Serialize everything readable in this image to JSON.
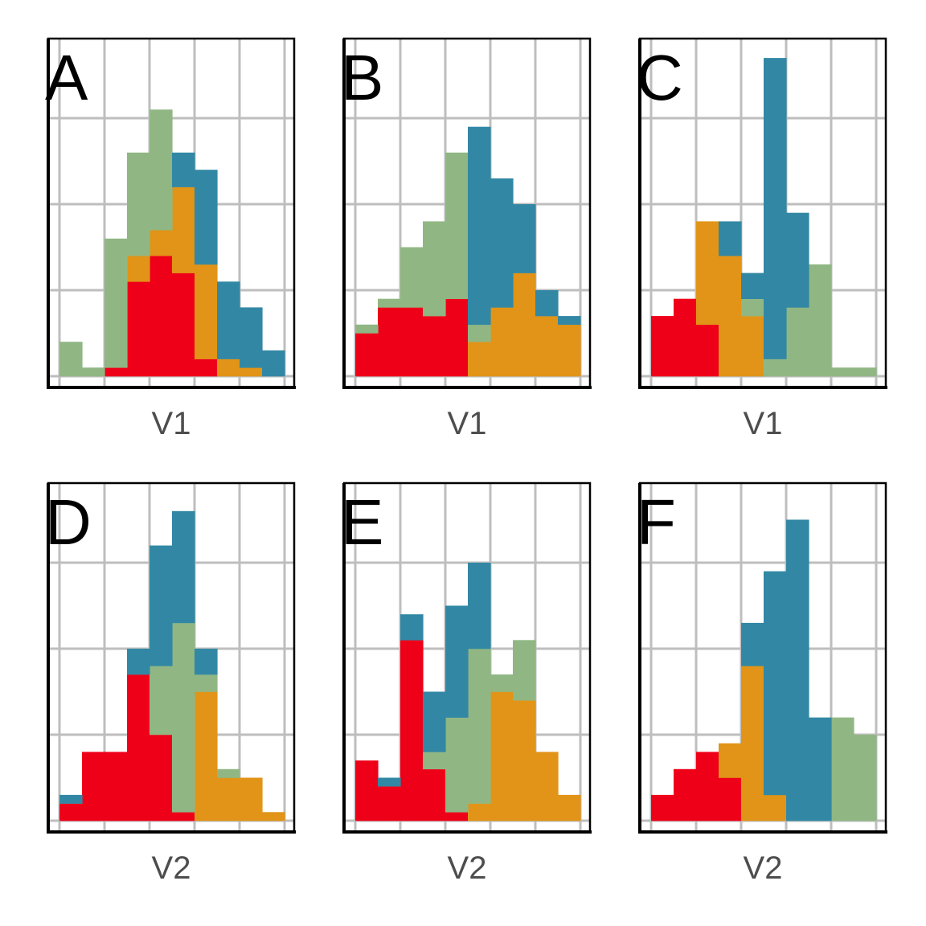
{
  "colors": {
    "red": "#ef0019",
    "orange": "#e19417",
    "green": "#90b783",
    "blue": "#3288a4",
    "grid": "#bebebe"
  },
  "chart_data": [
    {
      "type": "bar",
      "stacked": true,
      "panel": "A",
      "xlabel": "V1",
      "bins": 10,
      "ylim": [
        0,
        20
      ],
      "grid": true,
      "series": [
        {
          "color": "red",
          "values": [
            0,
            0,
            0.5,
            5.5,
            7,
            6,
            1,
            0,
            0,
            0
          ]
        },
        {
          "color": "orange",
          "values": [
            0,
            0,
            0,
            1.5,
            1.5,
            5,
            5.5,
            1,
            0.5,
            0
          ]
        },
        {
          "color": "green",
          "values": [
            2,
            0.5,
            7.5,
            6,
            7,
            0,
            0,
            0,
            0,
            0
          ]
        },
        {
          "color": "blue",
          "values": [
            0,
            0,
            0,
            0,
            0,
            2,
            5.5,
            4.5,
            3.5,
            1.5
          ]
        }
      ]
    },
    {
      "type": "bar",
      "stacked": true,
      "panel": "B",
      "xlabel": "V1",
      "bins": 10,
      "ylim": [
        0,
        20
      ],
      "grid": true,
      "series": [
        {
          "color": "red",
          "values": [
            2.5,
            4,
            4,
            3.5,
            4.5,
            0,
            0,
            0,
            0,
            0
          ]
        },
        {
          "color": "orange",
          "values": [
            0,
            0,
            0,
            0,
            0,
            2,
            4,
            6,
            3.5,
            3
          ]
        },
        {
          "color": "green",
          "values": [
            0.5,
            0.5,
            3.5,
            5.5,
            8.5,
            1,
            0,
            0,
            0,
            0
          ]
        },
        {
          "color": "blue",
          "values": [
            0,
            0,
            0,
            0,
            0,
            11.5,
            7.5,
            4,
            1.5,
            0.5
          ]
        }
      ]
    },
    {
      "type": "bar",
      "stacked": true,
      "panel": "C",
      "xlabel": "V1",
      "bins": 10,
      "ylim": [
        0,
        20
      ],
      "grid": true,
      "series": [
        {
          "color": "red",
          "values": [
            3.5,
            4.5,
            3,
            0,
            0,
            0,
            0,
            0,
            0,
            0
          ]
        },
        {
          "color": "orange",
          "values": [
            0,
            0,
            6,
            7,
            3.5,
            0,
            0,
            0,
            0,
            0
          ]
        },
        {
          "color": "green",
          "values": [
            0,
            0,
            0,
            0,
            1,
            1,
            4,
            6.5,
            0.5,
            0.5
          ]
        },
        {
          "color": "blue",
          "values": [
            0,
            0,
            0,
            2,
            1.5,
            17.5,
            5.5,
            0,
            0,
            0
          ]
        }
      ]
    },
    {
      "type": "bar",
      "stacked": true,
      "panel": "D",
      "xlabel": "V2",
      "bins": 10,
      "ylim": [
        0,
        20
      ],
      "grid": true,
      "series": [
        {
          "color": "red",
          "values": [
            1,
            4,
            4,
            8.5,
            5,
            0.5,
            0,
            0,
            0,
            0
          ]
        },
        {
          "color": "orange",
          "values": [
            0,
            0,
            0,
            0,
            0,
            0,
            7.5,
            2.5,
            2.5,
            0.5
          ]
        },
        {
          "color": "green",
          "values": [
            0,
            0,
            0,
            0,
            4,
            11,
            1,
            0.5,
            0,
            0
          ]
        },
        {
          "color": "blue",
          "values": [
            0.5,
            0,
            0,
            1.5,
            7,
            6.5,
            1.5,
            0,
            0,
            0
          ]
        }
      ]
    },
    {
      "type": "bar",
      "stacked": true,
      "panel": "E",
      "xlabel": "V2",
      "bins": 10,
      "ylim": [
        0,
        20
      ],
      "grid": true,
      "series": [
        {
          "color": "red",
          "values": [
            3.5,
            2,
            10.5,
            3,
            0.5,
            0,
            0,
            0,
            0,
            0
          ]
        },
        {
          "color": "orange",
          "values": [
            0,
            0,
            0,
            0,
            0,
            1,
            7.5,
            7,
            4,
            1.5
          ]
        },
        {
          "color": "green",
          "values": [
            0,
            0,
            0,
            1,
            5.5,
            9,
            1,
            3.5,
            0,
            0
          ]
        },
        {
          "color": "blue",
          "values": [
            0,
            0.5,
            1.5,
            3.5,
            6.5,
            5,
            0,
            0,
            0,
            0
          ]
        }
      ]
    },
    {
      "type": "bar",
      "stacked": true,
      "panel": "F",
      "xlabel": "V2",
      "bins": 10,
      "ylim": [
        0,
        20
      ],
      "grid": true,
      "series": [
        {
          "color": "red",
          "values": [
            1.5,
            3,
            4,
            2.5,
            0,
            0,
            0,
            0,
            0,
            0
          ]
        },
        {
          "color": "orange",
          "values": [
            0,
            0,
            0,
            2,
            9,
            1.5,
            0,
            0,
            0,
            0
          ]
        },
        {
          "color": "green",
          "values": [
            0,
            0,
            0,
            0,
            0,
            0,
            0,
            0,
            6,
            5
          ]
        },
        {
          "color": "blue",
          "values": [
            0,
            0,
            0,
            0,
            2.5,
            13,
            17.5,
            6,
            0,
            0
          ]
        }
      ]
    }
  ]
}
